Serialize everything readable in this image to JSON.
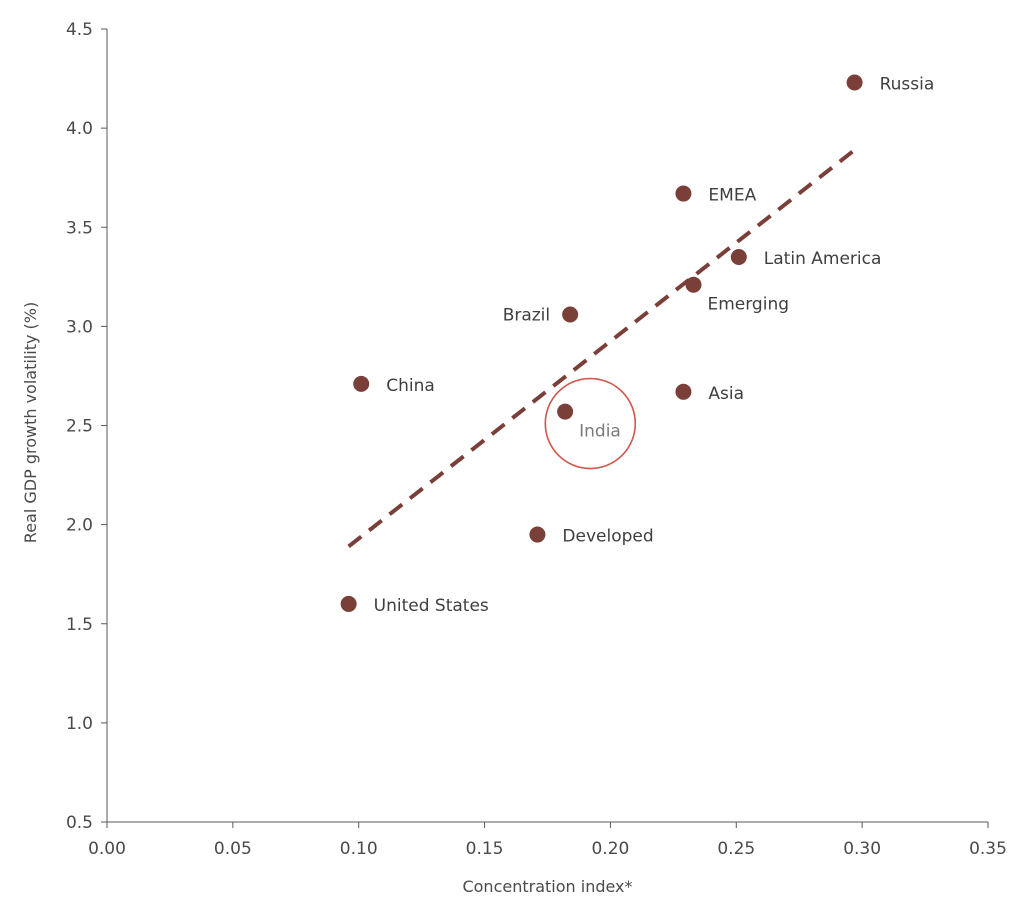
{
  "chart_data": {
    "type": "scatter",
    "xlabel": "Concentration index*",
    "ylabel": "Real GDP growth volatility (%)",
    "xlim": [
      0,
      0.35
    ],
    "ylim": [
      0.5,
      4.5
    ],
    "x_ticks": [
      "0.00",
      "0.05",
      "0.10",
      "0.15",
      "0.20",
      "0.25",
      "0.30",
      "0.35"
    ],
    "y_ticks": [
      "0.5",
      "1.0",
      "1.5",
      "2.0",
      "2.5",
      "3.0",
      "3.5",
      "4.0",
      "4.5"
    ],
    "grid": false,
    "points": [
      {
        "label": "Russia",
        "x": 0.297,
        "y": 4.23,
        "label_side": "right"
      },
      {
        "label": "EMEA",
        "x": 0.229,
        "y": 3.67,
        "label_side": "right"
      },
      {
        "label": "Latin America",
        "x": 0.251,
        "y": 3.35,
        "label_side": "right"
      },
      {
        "label": "Emerging",
        "x": 0.233,
        "y": 3.21,
        "label_side": "below-right"
      },
      {
        "label": "Brazil",
        "x": 0.184,
        "y": 3.06,
        "label_side": "left"
      },
      {
        "label": "China",
        "x": 0.101,
        "y": 2.71,
        "label_side": "right"
      },
      {
        "label": "Asia",
        "x": 0.229,
        "y": 2.67,
        "label_side": "right"
      },
      {
        "label": "India",
        "x": 0.182,
        "y": 2.57,
        "label_side": "below-right",
        "highlighted": true
      },
      {
        "label": "Developed",
        "x": 0.171,
        "y": 1.95,
        "label_side": "right"
      },
      {
        "label": "United States",
        "x": 0.096,
        "y": 1.6,
        "label_side": "right"
      }
    ],
    "trendline": {
      "style": "dashed",
      "from": [
        0.096,
        1.89
      ],
      "to": [
        0.297,
        3.89
      ]
    },
    "highlight_circle": {
      "x": 0.192,
      "y": 2.51,
      "target": "India"
    },
    "colors": {
      "point": "#7b3f3a",
      "trendline": "#7b3f3a",
      "highlight": "#d0574c"
    }
  }
}
